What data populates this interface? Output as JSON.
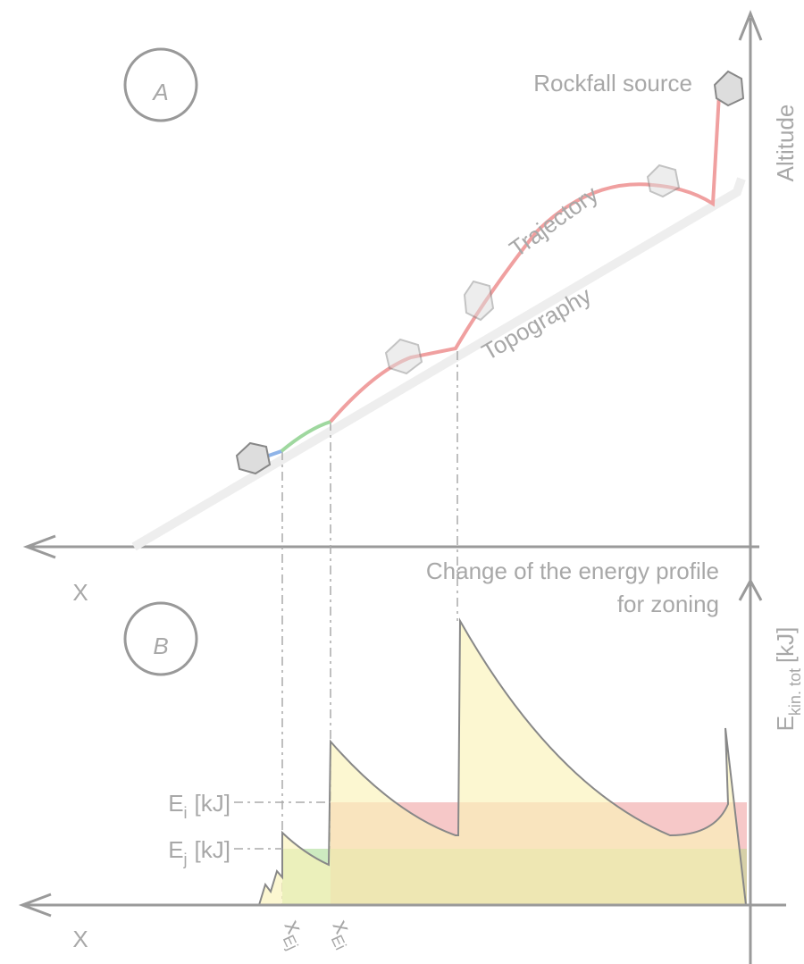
{
  "panel_a": {
    "label": "A",
    "source_label": "Rockfall source",
    "y_axis_label": "Altitude",
    "trajectory_label": "Trajectory",
    "topography_label": "Topography",
    "x_axis_label": "X"
  },
  "panel_b": {
    "label": "B",
    "title": [
      "Change of the energy profile",
      "for zoning"
    ],
    "y_axis_label": {
      "symbol": "E",
      "subscript": "kin. tot",
      "unit": "[kJ]"
    },
    "thresholds": [
      {
        "symbol": "E",
        "subscript": "i",
        "unit": "[kJ]"
      },
      {
        "symbol": "E",
        "subscript": "j",
        "unit": "[kJ]"
      }
    ],
    "x_markers": [
      {
        "symbol": "x",
        "subscript": "Ej"
      },
      {
        "symbol": "x",
        "subscript": "Ei"
      }
    ],
    "x_axis_label": "X"
  }
}
